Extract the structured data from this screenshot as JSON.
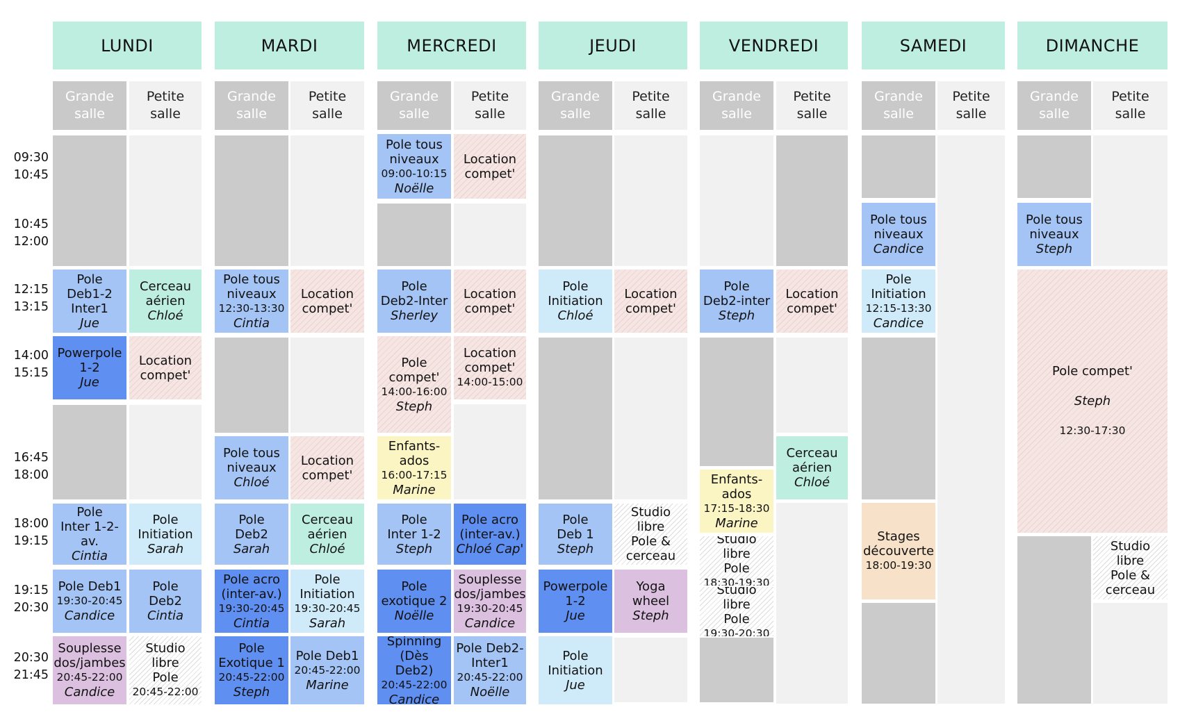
{
  "days": [
    "LUNDI",
    "MARDI",
    "MERCREDI",
    "JEUDI",
    "VENDREDI",
    "SAMEDI",
    "DIMANCHE"
  ],
  "rooms": {
    "grande": "Grande\nsalle",
    "petite": "Petite\nsalle"
  },
  "time_slots": [
    "09:30\n10:45",
    "10:45\n12:00",
    "12:15\n13:15",
    "14:00\n15:15",
    "16:45\n18:00",
    "18:00\n19:15",
    "19:15\n20:30",
    "20:30\n21:45"
  ],
  "colors": {
    "header_mint": "#bdeedf",
    "blue": "#a3c4f5",
    "dark_blue": "#5f8ff0",
    "light_blue": "#cfeaf8",
    "mint": "#bdeedf",
    "yellow": "#fbf4c3",
    "purple": "#dcc0e0",
    "peach": "#f7e1c8",
    "hatched_pink": "#f5e5e3",
    "grid_gray": "#cbcbcb",
    "grid_light": "#f1f1f1"
  },
  "events": [
    {
      "id": "lun-pole-deb1-2-inter1",
      "title": "Pole\nDeb1-2\nInter1",
      "time": "",
      "instructor": "Jue",
      "color": "blue"
    },
    {
      "id": "lun-cerceau-aerien",
      "title": "Cerceau\naérien",
      "time": "",
      "instructor": "Chloé",
      "color": "mint"
    },
    {
      "id": "lun-powerpole-1-2",
      "title": "Powerpole\n1-2",
      "time": "",
      "instructor": "Jue",
      "color": "dark_blue"
    },
    {
      "id": "lun-location-compet",
      "title": "Location\ncompet'",
      "time": "",
      "instructor": "",
      "color": "hatched"
    },
    {
      "id": "lun-pole-inter-1-2-av",
      "title": "Pole\nInter 1-2-av.",
      "time": "",
      "instructor": "Cintia",
      "color": "blue"
    },
    {
      "id": "lun-pole-initiation",
      "title": "Pole\nInitiation",
      "time": "",
      "instructor": "Sarah",
      "color": "light_blue"
    },
    {
      "id": "lun-pole-deb1",
      "title": "Pole Deb1",
      "time": "19:30-20:45",
      "instructor": "Candice",
      "color": "blue"
    },
    {
      "id": "lun-pole-deb2",
      "title": "Pole\nDeb2",
      "time": "",
      "instructor": "Cintia",
      "color": "blue"
    },
    {
      "id": "lun-souplesse",
      "title": "Souplesse\ndos/jambes",
      "time": "20:45-22:00",
      "instructor": "Candice",
      "color": "purple"
    },
    {
      "id": "lun-studio-libre",
      "title": "Studio libre\nPole",
      "time": "20:45-22:00",
      "instructor": "",
      "color": "stripe"
    },
    {
      "id": "mar-pole-tous-niveaux-1",
      "title": "Pole tous\nniveaux",
      "time": "12:30-13:30",
      "instructor": "Cintia",
      "color": "blue"
    },
    {
      "id": "mar-location-compet-1",
      "title": "Location\ncompet'",
      "time": "",
      "instructor": "",
      "color": "hatched"
    },
    {
      "id": "mar-pole-tous-niveaux-2",
      "title": "Pole tous\nniveaux",
      "time": "",
      "instructor": "Chloé",
      "color": "blue"
    },
    {
      "id": "mar-location-compet-2",
      "title": "Location\ncompet'",
      "time": "",
      "instructor": "",
      "color": "hatched"
    },
    {
      "id": "mar-pole-deb2",
      "title": "Pole\nDeb2",
      "time": "",
      "instructor": "Sarah",
      "color": "blue"
    },
    {
      "id": "mar-cerceau-aerien",
      "title": "Cerceau\naérien",
      "time": "",
      "instructor": "Chloé",
      "color": "mint"
    },
    {
      "id": "mar-pole-acro",
      "title": "Pole acro\n(inter-av.)",
      "time": "19:30-20:45",
      "instructor": "Cintia",
      "color": "dark_blue"
    },
    {
      "id": "mar-pole-initiation",
      "title": "Pole\nInitiation",
      "time": "19:30-20:45",
      "instructor": "Sarah",
      "color": "light_blue"
    },
    {
      "id": "mar-pole-exotique-1",
      "title": "Pole\nExotique 1",
      "time": "20:45-22:00",
      "instructor": "Steph",
      "color": "dark_blue"
    },
    {
      "id": "mar-pole-deb1",
      "title": "Pole Deb1",
      "time": "20:45-22:00",
      "instructor": "Marine",
      "color": "blue"
    },
    {
      "id": "mer-pole-tous-niveaux",
      "title": "Pole tous\nniveaux",
      "time": "09:00-10:15",
      "instructor": "Noëlle",
      "color": "blue"
    },
    {
      "id": "mer-location-compet-1",
      "title": "Location\ncompet'",
      "time": "",
      "instructor": "",
      "color": "hatched"
    },
    {
      "id": "mer-pole-deb2-inter",
      "title": "Pole\nDeb2-Inter",
      "time": "",
      "instructor": "Sherley",
      "color": "blue"
    },
    {
      "id": "mer-location-compet-2",
      "title": "Location\ncompet'",
      "time": "",
      "instructor": "",
      "color": "hatched"
    },
    {
      "id": "mer-pole-compet",
      "title": "Pole\ncompet'",
      "time": "14:00-16:00",
      "instructor": "Steph",
      "color": "hatched"
    },
    {
      "id": "mer-location-compet-3",
      "title": "Location\ncompet'",
      "time": "14:00-15:00",
      "instructor": "",
      "color": "hatched"
    },
    {
      "id": "mer-enfants-ados",
      "title": "Enfants-\nados",
      "time": "16:00-17:15",
      "instructor": "Marine",
      "color": "yellow"
    },
    {
      "id": "mer-pole-inter-1-2",
      "title": "Pole\nInter 1-2",
      "time": "",
      "instructor": "Steph",
      "color": "blue"
    },
    {
      "id": "mer-pole-acro",
      "title": "Pole acro\n(inter-av.)",
      "time": "",
      "instructor": "Chloé Cap'",
      "color": "dark_blue"
    },
    {
      "id": "mer-pole-exotique-2",
      "title": "Pole\nexotique 2",
      "time": "",
      "instructor": "Noëlle",
      "color": "dark_blue"
    },
    {
      "id": "mer-souplesse",
      "title": "Souplesse\ndos/jambes",
      "time": "19:30-20:45",
      "instructor": "Candice",
      "color": "purple"
    },
    {
      "id": "mer-spinning",
      "title": "Spinning\n(Dès Deb2)",
      "time": "20:45-22:00",
      "instructor": "Candice",
      "color": "dark_blue"
    },
    {
      "id": "mer-pole-deb2-inter1",
      "title": "Pole Deb2-\nInter1",
      "time": "20:45-22:00",
      "instructor": "Noëlle",
      "color": "blue"
    },
    {
      "id": "jeu-pole-initiation-1",
      "title": "Pole\nInitiation",
      "time": "",
      "instructor": "Chloé",
      "color": "light_blue"
    },
    {
      "id": "jeu-location-compet",
      "title": "Location\ncompet'",
      "time": "",
      "instructor": "",
      "color": "hatched"
    },
    {
      "id": "jeu-pole-deb1",
      "title": "Pole\nDeb 1",
      "time": "",
      "instructor": "Steph",
      "color": "blue"
    },
    {
      "id": "jeu-studio-libre",
      "title": "Studio libre\nPole &\ncerceau",
      "time": "",
      "instructor": "",
      "color": "stripe"
    },
    {
      "id": "jeu-powerpole",
      "title": "Powerpole\n1-2",
      "time": "",
      "instructor": "Jue",
      "color": "dark_blue"
    },
    {
      "id": "jeu-yoga-wheel",
      "title": "Yoga\nwheel",
      "time": "",
      "instructor": "Steph",
      "color": "purple"
    },
    {
      "id": "jeu-pole-initiation-2",
      "title": "Pole\nInitiation",
      "time": "",
      "instructor": "Jue",
      "color": "light_blue"
    },
    {
      "id": "ven-pole-deb2-inter",
      "title": "Pole\nDeb2-inter",
      "time": "",
      "instructor": "Steph",
      "color": "blue"
    },
    {
      "id": "ven-location-compet",
      "title": "Location\ncompet'",
      "time": "",
      "instructor": "",
      "color": "hatched"
    },
    {
      "id": "ven-cerceau-aerien",
      "title": "Cerceau\naérien",
      "time": "",
      "instructor": "Chloé",
      "color": "mint"
    },
    {
      "id": "ven-enfants-ados",
      "title": "Enfants-\nados",
      "time": "17:15-18:30",
      "instructor": "Marine",
      "color": "yellow"
    },
    {
      "id": "ven-studio-libre-1",
      "title": "Studio libre\nPole",
      "time": "18:30-19:30",
      "instructor": "",
      "color": "stripe"
    },
    {
      "id": "ven-studio-libre-2",
      "title": "Studio libre\nPole",
      "time": "19:30-20:30",
      "instructor": "",
      "color": "stripe"
    },
    {
      "id": "sam-pole-tous-niveaux",
      "title": "Pole tous\nniveaux",
      "time": "",
      "instructor": "Candice",
      "color": "blue"
    },
    {
      "id": "sam-pole-initiation",
      "title": "Pole\nInitiation",
      "time": "12:15-13:30",
      "instructor": "Candice",
      "color": "light_blue"
    },
    {
      "id": "sam-stages",
      "title": "Stages\ndécouverte",
      "time": "18:00-19:30",
      "instructor": "",
      "color": "peach"
    },
    {
      "id": "dim-pole-tous-niveaux",
      "title": "Pole tous\nniveaux",
      "time": "",
      "instructor": "Steph",
      "color": "blue"
    },
    {
      "id": "dim-pole-compet",
      "title": "Pole compet'",
      "time": "12:30-17:30",
      "instructor": "Steph",
      "color": "hatched"
    },
    {
      "id": "dim-studio-libre",
      "title": "Studio libre\nPole &\ncerceau",
      "time": "",
      "instructor": "",
      "color": "stripe"
    }
  ]
}
